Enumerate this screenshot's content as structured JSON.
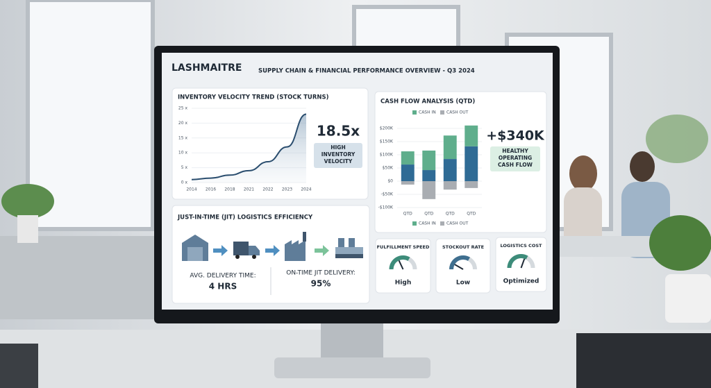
{
  "header": {
    "brand": "LASHMAITRE",
    "title": "SUPPLY CHAIN & FINANCIAL PERFORMANCE OVERVIEW - Q3 2024"
  },
  "chart_data": [
    {
      "type": "line",
      "title": "INVENTORY VELOCITY TREND (STOCK TURNS)",
      "categories": [
        "2014",
        "2016",
        "2018",
        "2021",
        "2022",
        "2023",
        "2024"
      ],
      "values": [
        1,
        1.5,
        2.5,
        4,
        7,
        12,
        23
      ],
      "color": "#2a4d6e",
      "ylim": [
        0,
        25
      ],
      "yticks": [
        {
          "value": 0,
          "label": "0 x"
        },
        {
          "value": 5,
          "label": "5 x"
        },
        {
          "value": 10,
          "label": "10 x"
        },
        {
          "value": 15,
          "label": "15 x"
        },
        {
          "value": 20,
          "label": "20 x"
        },
        {
          "value": 25,
          "label": "25 x"
        }
      ],
      "kpi": "18.5x",
      "kpi_label": [
        "HIGH",
        "INVENTORY",
        "VELOCITY"
      ]
    },
    {
      "type": "stacked_bar",
      "title": "CASH FLOW ANALYSIS (QTD)",
      "categories": [
        "QTD",
        "QTD",
        "QTD",
        "QTD"
      ],
      "series": [
        {
          "color": "#2f6b95",
          "values": [
            63,
            42,
            84,
            132
          ]
        },
        {
          "name": "CASH IN",
          "color": "#5fae8c",
          "values": [
            50,
            74,
            89,
            79
          ]
        },
        {
          "name": "CASH OUT",
          "color": "#a9adb2",
          "values": [
            -13,
            -68,
            -32,
            -26
          ]
        }
      ],
      "ylim": [
        -100,
        200
      ],
      "yticks": [
        {
          "value": 200,
          "label": "$200K"
        },
        {
          "value": 150,
          "label": "$150K"
        },
        {
          "value": 100,
          "label": "$100K"
        },
        {
          "value": 50,
          "label": "$50K"
        },
        {
          "value": 0,
          "label": "$0"
        },
        {
          "value": -50,
          "label": "-$50K"
        },
        {
          "value": -100,
          "label": "-$100K"
        }
      ],
      "kpi": "+$340K",
      "kpi_label": [
        "HEALTHY",
        "OPERATING",
        "CASH FLOW"
      ]
    }
  ],
  "logistics": {
    "title": "JUST-IN-TIME (JIT) LOGISTICS EFFICIENCY",
    "delivery_time_label": "AVG. DELIVERY TIME:",
    "delivery_time": "4 HRS",
    "on_time_label": "ON-TIME JIT DELIVERY:",
    "on_time": "95%"
  },
  "gauges": [
    {
      "title": "FULFILLMENT SPEED",
      "status": "High"
    },
    {
      "title": "STOCKOUT RATE",
      "status": "Low"
    },
    {
      "title": "LOGISTICS COST",
      "status": "Optimized"
    }
  ]
}
